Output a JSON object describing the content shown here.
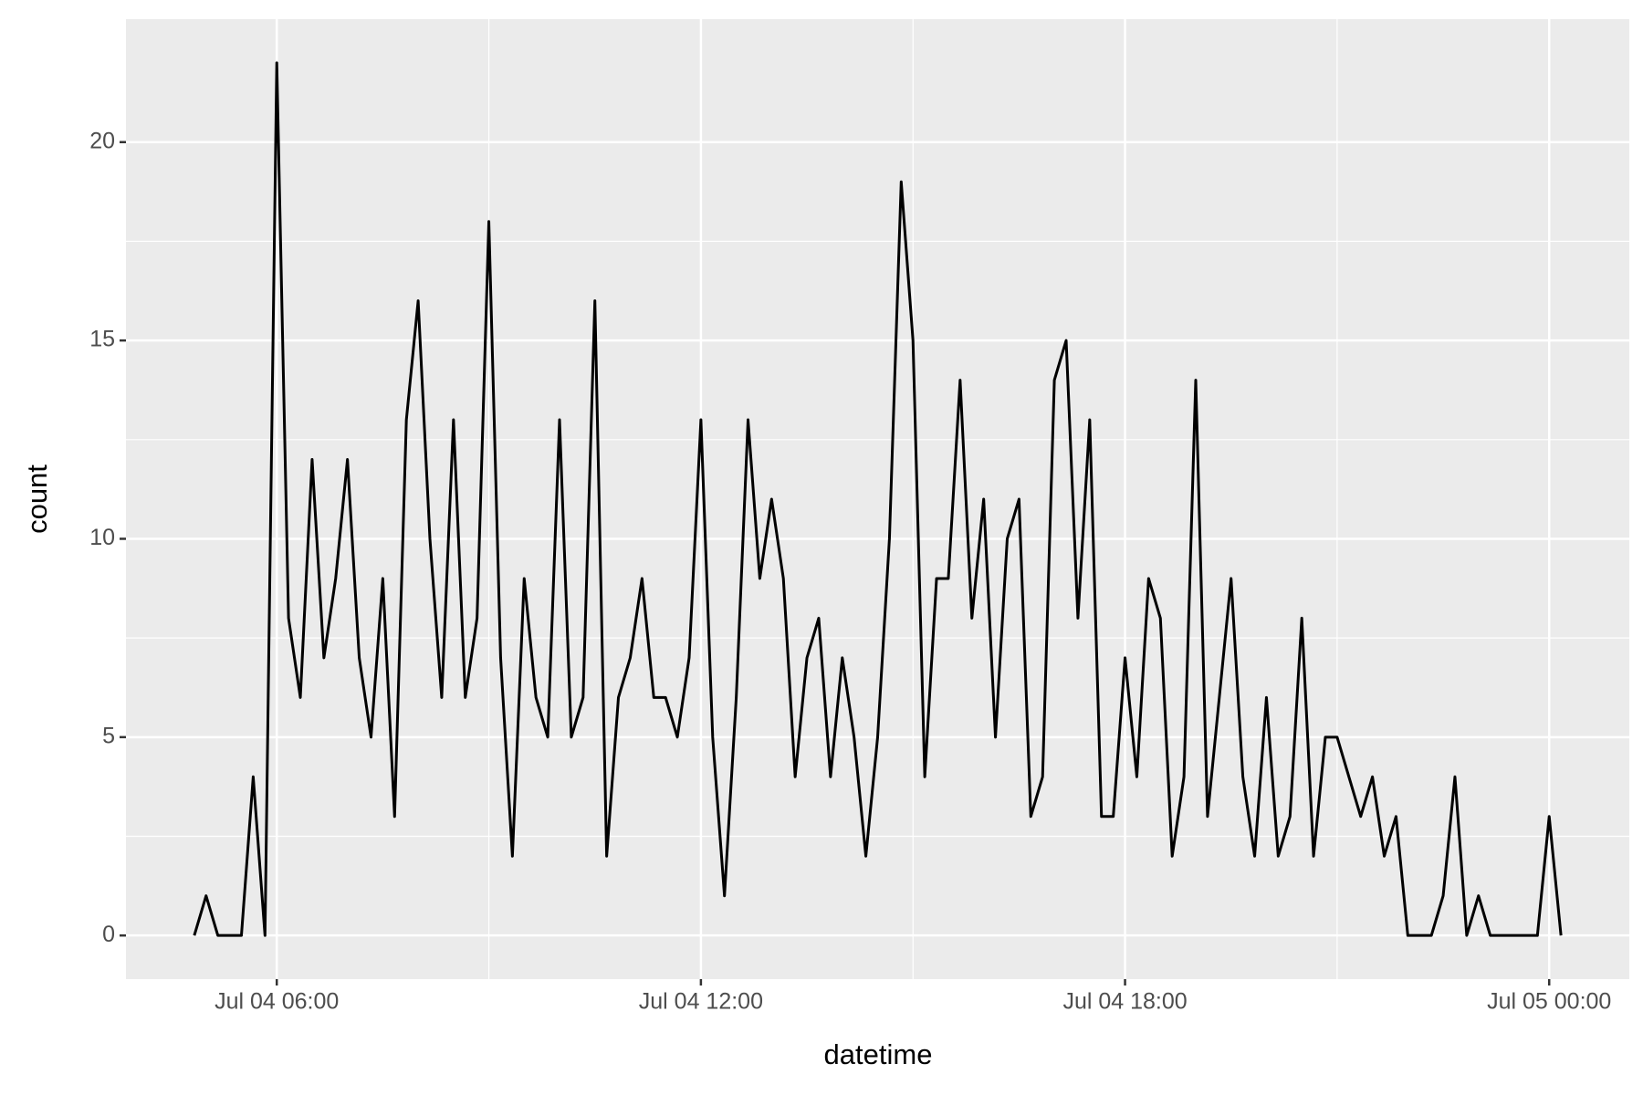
{
  "chart_data": {
    "type": "line",
    "x_label": "datetime",
    "y_label": "count",
    "x": [
      "Jul 04 04:50",
      "Jul 04 05:00",
      "Jul 04 05:10",
      "Jul 04 05:20",
      "Jul 04 05:30",
      "Jul 04 05:40",
      "Jul 04 05:50",
      "Jul 04 06:00",
      "Jul 04 06:10",
      "Jul 04 06:20",
      "Jul 04 06:30",
      "Jul 04 06:40",
      "Jul 04 06:50",
      "Jul 04 07:00",
      "Jul 04 07:10",
      "Jul 04 07:20",
      "Jul 04 07:30",
      "Jul 04 07:40",
      "Jul 04 07:50",
      "Jul 04 08:00",
      "Jul 04 08:10",
      "Jul 04 08:20",
      "Jul 04 08:30",
      "Jul 04 08:40",
      "Jul 04 08:50",
      "Jul 04 09:00",
      "Jul 04 09:10",
      "Jul 04 09:20",
      "Jul 04 09:30",
      "Jul 04 09:40",
      "Jul 04 09:50",
      "Jul 04 10:00",
      "Jul 04 10:10",
      "Jul 04 10:20",
      "Jul 04 10:30",
      "Jul 04 10:40",
      "Jul 04 10:50",
      "Jul 04 11:00",
      "Jul 04 11:10",
      "Jul 04 11:20",
      "Jul 04 11:30",
      "Jul 04 11:40",
      "Jul 04 11:50",
      "Jul 04 12:00",
      "Jul 04 12:10",
      "Jul 04 12:20",
      "Jul 04 12:30",
      "Jul 04 12:40",
      "Jul 04 12:50",
      "Jul 04 13:00",
      "Jul 04 13:10",
      "Jul 04 13:20",
      "Jul 04 13:30",
      "Jul 04 13:40",
      "Jul 04 13:50",
      "Jul 04 14:00",
      "Jul 04 14:10",
      "Jul 04 14:20",
      "Jul 04 14:30",
      "Jul 04 14:40",
      "Jul 04 14:50",
      "Jul 04 15:00",
      "Jul 04 15:10",
      "Jul 04 15:20",
      "Jul 04 15:30",
      "Jul 04 15:40",
      "Jul 04 15:50",
      "Jul 04 16:00",
      "Jul 04 16:10",
      "Jul 04 16:20",
      "Jul 04 16:30",
      "Jul 04 16:40",
      "Jul 04 16:50",
      "Jul 04 17:00",
      "Jul 04 17:10",
      "Jul 04 17:20",
      "Jul 04 17:30",
      "Jul 04 17:40",
      "Jul 04 17:50",
      "Jul 04 18:00",
      "Jul 04 18:10",
      "Jul 04 18:20",
      "Jul 04 18:30",
      "Jul 04 18:40",
      "Jul 04 18:50",
      "Jul 04 19:00",
      "Jul 04 19:10",
      "Jul 04 19:20",
      "Jul 04 19:30",
      "Jul 04 19:40",
      "Jul 04 19:50",
      "Jul 04 20:00",
      "Jul 04 20:10",
      "Jul 04 20:20",
      "Jul 04 20:30",
      "Jul 04 20:40",
      "Jul 04 20:50",
      "Jul 04 21:00",
      "Jul 04 21:10",
      "Jul 04 21:20",
      "Jul 04 21:30",
      "Jul 04 21:40",
      "Jul 04 21:50",
      "Jul 04 22:00",
      "Jul 04 22:10",
      "Jul 04 22:20",
      "Jul 04 22:30",
      "Jul 04 22:40",
      "Jul 04 22:50",
      "Jul 04 23:00",
      "Jul 04 23:10",
      "Jul 04 23:20",
      "Jul 04 23:30",
      "Jul 04 23:40",
      "Jul 04 23:50",
      "Jul 05 00:00",
      "Jul 05 00:10"
    ],
    "values": [
      0,
      1,
      0,
      0,
      0,
      4,
      0,
      22,
      8,
      6,
      12,
      7,
      9,
      12,
      7,
      5,
      9,
      3,
      13,
      16,
      10,
      6,
      13,
      6,
      8,
      18,
      7,
      2,
      9,
      6,
      5,
      13,
      5,
      6,
      16,
      2,
      6,
      7,
      9,
      6,
      6,
      5,
      7,
      13,
      5,
      1,
      6,
      13,
      9,
      11,
      9,
      4,
      7,
      8,
      4,
      7,
      5,
      2,
      5,
      10,
      19,
      15,
      4,
      9,
      9,
      14,
      8,
      11,
      5,
      10,
      11,
      3,
      4,
      14,
      15,
      8,
      13,
      3,
      3,
      7,
      4,
      9,
      8,
      2,
      4,
      14,
      3,
      6,
      9,
      4,
      2,
      6,
      2,
      3,
      8,
      2,
      5,
      5,
      4,
      3,
      4,
      2,
      3,
      0,
      0,
      0,
      1,
      4,
      0,
      1,
      0,
      0,
      0,
      0,
      0,
      3,
      0
    ],
    "color": "#000000",
    "xlim": [
      "Jul 04 03:52",
      "Jul 05 01:08"
    ],
    "xticks": [
      "Jul 04 06:00",
      "Jul 04 12:00",
      "Jul 04 18:00",
      "Jul 05 00:00"
    ],
    "ylim": [
      -1.1,
      23.1
    ],
    "yticks": [
      0,
      5,
      10,
      15,
      20
    ],
    "grid": true
  }
}
